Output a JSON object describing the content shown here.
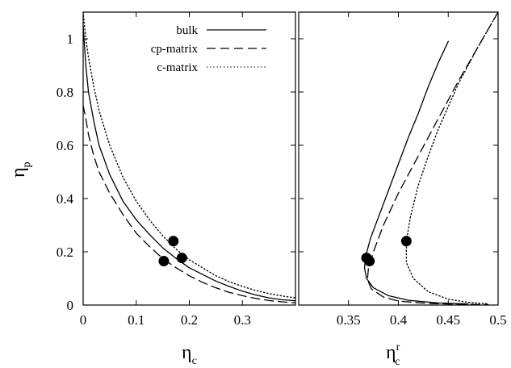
{
  "chart_data": [
    {
      "panel": "left",
      "type": "line",
      "xlabel": "η",
      "xlabel_sub": "c",
      "ylabel": "η",
      "ylabel_sub": "p",
      "xlim": [
        0,
        0.4
      ],
      "ylim": [
        0,
        1.1
      ],
      "x_ticks": [
        0,
        0.1,
        0.2,
        0.3
      ],
      "x_tick_labels": [
        "0",
        "0.1",
        "0.2",
        "0.3"
      ],
      "y_ticks": [
        0,
        0.2,
        0.4,
        0.6,
        0.8,
        1.0
      ],
      "y_tick_labels": [
        "0",
        "0.2",
        "0.4",
        "0.6",
        "0.8",
        "1"
      ],
      "grid": false,
      "legend_position": "top-right",
      "series": [
        {
          "name": "bulk",
          "style": "solid",
          "x": [
            0.0,
            0.005,
            0.01,
            0.02,
            0.03,
            0.05,
            0.075,
            0.1,
            0.125,
            0.15,
            0.175,
            0.2,
            0.225,
            0.25,
            0.275,
            0.3,
            0.325,
            0.35,
            0.375,
            0.4
          ],
          "y": [
            1.05,
            0.9,
            0.8,
            0.69,
            0.6,
            0.49,
            0.39,
            0.32,
            0.265,
            0.215,
            0.175,
            0.14,
            0.115,
            0.09,
            0.07,
            0.052,
            0.038,
            0.027,
            0.02,
            0.016
          ]
        },
        {
          "name": "cp-matrix",
          "style": "dashed",
          "x": [
            0.0,
            0.005,
            0.01,
            0.02,
            0.03,
            0.05,
            0.075,
            0.1,
            0.125,
            0.15,
            0.175,
            0.2,
            0.225,
            0.25,
            0.275,
            0.3,
            0.325,
            0.35,
            0.375,
            0.4
          ],
          "y": [
            0.75,
            0.7,
            0.64,
            0.56,
            0.5,
            0.42,
            0.34,
            0.27,
            0.22,
            0.175,
            0.14,
            0.11,
            0.085,
            0.065,
            0.048,
            0.035,
            0.025,
            0.017,
            0.012,
            0.008
          ]
        },
        {
          "name": "c-matrix",
          "style": "dotted",
          "x": [
            0.0,
            0.005,
            0.01,
            0.02,
            0.03,
            0.05,
            0.075,
            0.1,
            0.125,
            0.15,
            0.175,
            0.2,
            0.225,
            0.25,
            0.275,
            0.3,
            0.325,
            0.35,
            0.375,
            0.4
          ],
          "y": [
            1.1,
            1.0,
            0.93,
            0.82,
            0.73,
            0.6,
            0.48,
            0.39,
            0.32,
            0.26,
            0.21,
            0.17,
            0.14,
            0.11,
            0.088,
            0.07,
            0.055,
            0.043,
            0.034,
            0.027
          ]
        }
      ],
      "points": [
        {
          "x": 0.152,
          "y": 0.165
        },
        {
          "x": 0.17,
          "y": 0.24
        },
        {
          "x": 0.186,
          "y": 0.177
        }
      ]
    },
    {
      "panel": "right",
      "type": "line",
      "xlabel": "η",
      "xlabel_sub": "c",
      "xlabel_sup": "r",
      "xlim": [
        0.3,
        0.5
      ],
      "ylim": [
        0,
        1.1
      ],
      "x_ticks": [
        0.35,
        0.4,
        0.45,
        0.5
      ],
      "x_tick_labels": [
        "0.35",
        "0.4",
        "0.45",
        "0.5"
      ],
      "grid": false,
      "series": [
        {
          "name": "bulk",
          "style": "solid",
          "x": [
            0.45,
            0.44,
            0.43,
            0.42,
            0.41,
            0.4,
            0.39,
            0.38,
            0.372,
            0.367,
            0.366,
            0.368,
            0.375,
            0.39,
            0.41,
            0.44,
            0.47
          ],
          "y": [
            0.99,
            0.91,
            0.82,
            0.72,
            0.63,
            0.53,
            0.43,
            0.33,
            0.25,
            0.18,
            0.14,
            0.1,
            0.065,
            0.035,
            0.018,
            0.008,
            0.004
          ]
        },
        {
          "name": "cp-matrix",
          "style": "dashed",
          "x": [
            0.5,
            0.48,
            0.46,
            0.44,
            0.42,
            0.4,
            0.385,
            0.375,
            0.37,
            0.369,
            0.373,
            0.385,
            0.4,
            0.43,
            0.46,
            0.49
          ],
          "y": [
            1.1,
            0.97,
            0.84,
            0.7,
            0.56,
            0.42,
            0.3,
            0.2,
            0.14,
            0.095,
            0.06,
            0.03,
            0.015,
            0.006,
            0.003,
            0.002
          ]
        },
        {
          "name": "c-matrix",
          "style": "dotted",
          "x": [
            0.5,
            0.48,
            0.46,
            0.44,
            0.43,
            0.42,
            0.412,
            0.408,
            0.408,
            0.415,
            0.43,
            0.45,
            0.47,
            0.49
          ],
          "y": [
            1.1,
            0.97,
            0.83,
            0.66,
            0.56,
            0.45,
            0.33,
            0.24,
            0.16,
            0.1,
            0.05,
            0.022,
            0.01,
            0.005
          ]
        }
      ],
      "points": [
        {
          "x": 0.368,
          "y": 0.177
        },
        {
          "x": 0.371,
          "y": 0.165
        },
        {
          "x": 0.408,
          "y": 0.24
        }
      ]
    }
  ],
  "colors": {
    "line": "#000000",
    "background": "#ffffff"
  }
}
